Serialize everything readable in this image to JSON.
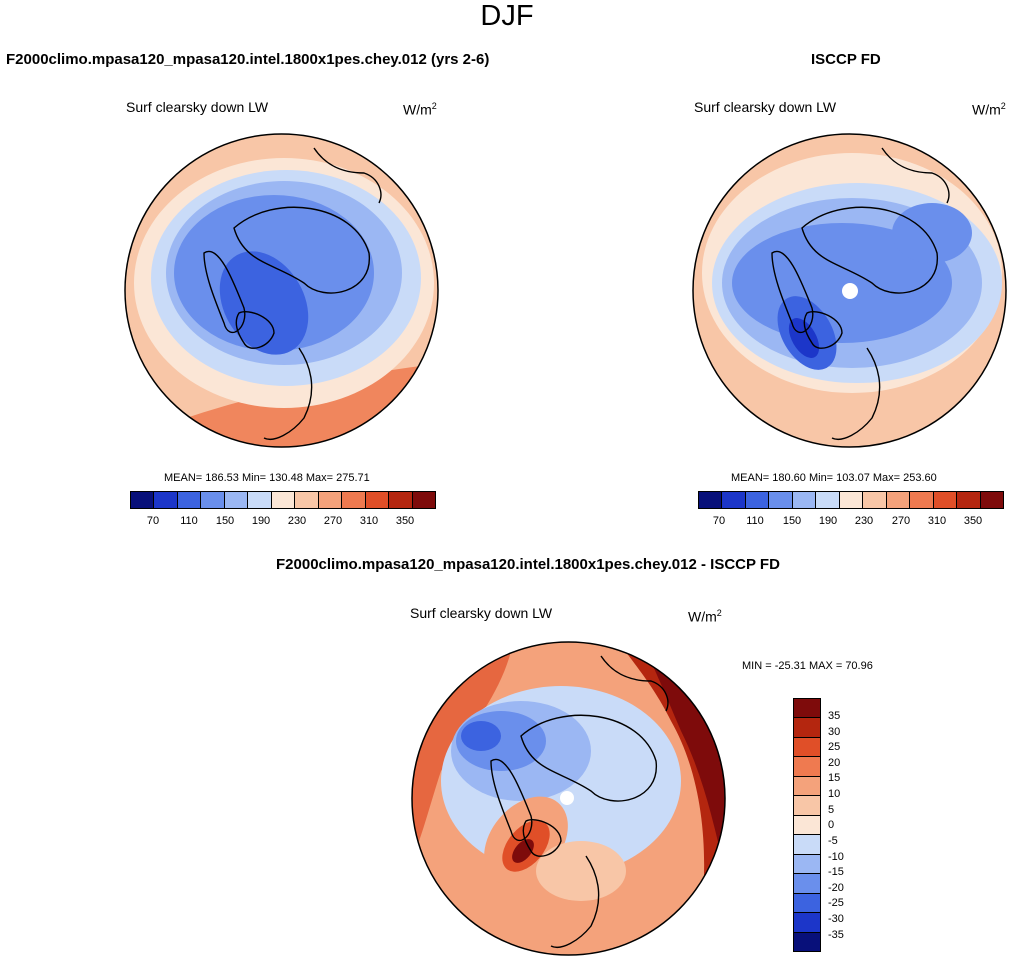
{
  "figure": {
    "title": "DJF",
    "color_hex": {
      "c1": "#08107a",
      "c2": "#1c36c9",
      "c3": "#3c63e0",
      "c4": "#6a8fec",
      "c5": "#9bb7f3",
      "c6": "#c9dbf8",
      "c7": "#fbe6d6",
      "c8": "#f8c6a7",
      "c9": "#f4a27b",
      "c10": "#ef7a50",
      "c11": "#e04f28",
      "c12": "#b4260f",
      "c13": "#7e0b0b",
      "land_outline": "#000000",
      "missing": "#ffffff"
    }
  },
  "chart_data": [
    {
      "type": "heatmap",
      "projection": "polar stereographic (Northern Hemisphere)",
      "title": "F2000climo.mpasa120_mpasa120.intel.1800x1pes.chey.012 (yrs 2-6)",
      "variable": "Surf clearsky down LW",
      "units_base": "W/m",
      "units_exp": "2",
      "stats_text": "MEAN= 186.53  Min= 130.48  Max= 275.71",
      "mean": 186.53,
      "min": 130.48,
      "max": 275.71,
      "colorbar": {
        "orientation": "horizontal",
        "range": [
          50,
          370
        ],
        "levels": [
          70,
          90,
          110,
          130,
          150,
          170,
          190,
          210,
          230,
          250,
          270,
          290,
          310,
          330,
          350
        ],
        "tick_labels": [
          "70",
          "110",
          "150",
          "190",
          "230",
          "270",
          "310",
          "350"
        ]
      },
      "field_rings": [
        {
          "zone": "outer edge (low latitudes)",
          "value": 245
        },
        {
          "zone": "mid latitudes",
          "value": 215
        },
        {
          "zone": "subpolar",
          "value": 190
        },
        {
          "zone": "polar ring",
          "value": 170
        },
        {
          "zone": "Arctic / Greenland",
          "value": 150
        }
      ]
    },
    {
      "type": "heatmap",
      "projection": "polar stereographic (Northern Hemisphere)",
      "title": "ISCCP FD",
      "variable": "Surf clearsky down LW",
      "units_base": "W/m",
      "units_exp": "2",
      "stats_text": "MEAN= 180.60  Min= 103.07  Max= 253.60",
      "mean": 180.6,
      "min": 103.07,
      "max": 253.6,
      "colorbar": {
        "orientation": "horizontal",
        "range": [
          50,
          370
        ],
        "levels": [
          70,
          90,
          110,
          130,
          150,
          170,
          190,
          210,
          230,
          250,
          270,
          290,
          310,
          330,
          350
        ],
        "tick_labels": [
          "70",
          "110",
          "150",
          "190",
          "230",
          "270",
          "310",
          "350"
        ]
      },
      "field_rings": [
        {
          "zone": "outer edge (low latitudes)",
          "value": 235
        },
        {
          "zone": "mid latitudes",
          "value": 205
        },
        {
          "zone": "subpolar",
          "value": 180
        },
        {
          "zone": "polar ring",
          "value": 160
        },
        {
          "zone": "Arctic",
          "value": 145
        },
        {
          "zone": "Greenland minimum",
          "value": 115
        }
      ],
      "missing_pole": true
    },
    {
      "type": "heatmap",
      "projection": "polar stereographic (Northern Hemisphere)",
      "title": "F2000climo.mpasa120_mpasa120.intel.1800x1pes.chey.012 - ISCCP FD",
      "variable": "Surf clearsky down LW",
      "units_base": "W/m",
      "units_exp": "2",
      "stats_text": "MIN = -25.31 MAX =  70.96",
      "min": -25.31,
      "max": 70.96,
      "colorbar": {
        "orientation": "vertical",
        "range": [
          -40,
          40
        ],
        "levels": [
          35,
          30,
          25,
          20,
          15,
          10,
          5,
          0,
          -5,
          -10,
          -15,
          -20,
          -25,
          -30,
          -35
        ],
        "tick_labels": [
          "35",
          "30",
          "25",
          "20",
          "15",
          "10",
          "5",
          "0",
          "-5",
          "-10",
          "-15",
          "-20",
          "-25",
          "-30",
          "-35"
        ]
      },
      "features": [
        {
          "region": "Pacific sector (right edge)",
          "value": 38
        },
        {
          "region": "Greenland",
          "value": 32
        },
        {
          "region": "Eurasian Arctic",
          "value": -12
        },
        {
          "region": "Atlantic / Europe",
          "value": 12
        }
      ],
      "missing_pole": true
    }
  ]
}
